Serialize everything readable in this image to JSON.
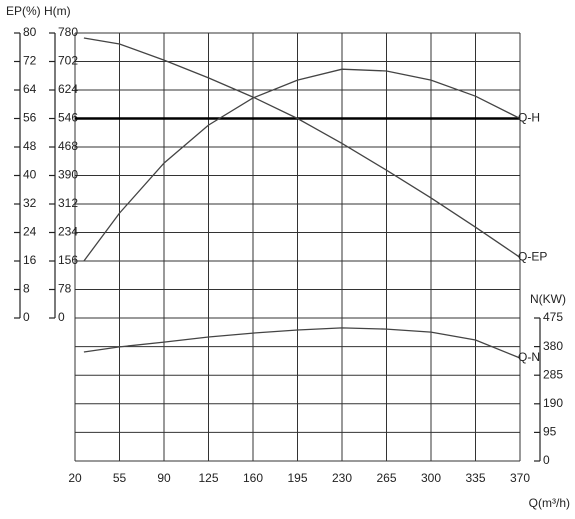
{
  "chart_data": {
    "type": "line",
    "x_label": "Q(m³/h)",
    "y_label": "EP(%)",
    "y2_label": "H(m)",
    "y3_label": "N(KW)",
    "xlim": [
      20,
      370
    ],
    "xticks": [
      20,
      55,
      90,
      125,
      160,
      195,
      230,
      265,
      300,
      335,
      370
    ],
    "ylim": [
      0,
      80
    ],
    "yticks": [
      0,
      8,
      16,
      24,
      32,
      40,
      48,
      56,
      64,
      72,
      80
    ],
    "y2lim": [
      0,
      780
    ],
    "y2ticks": [
      0,
      78,
      156,
      234,
      312,
      390,
      468,
      546,
      624,
      702,
      780
    ],
    "y3lim": [
      0,
      475
    ],
    "y3ticks": [
      0,
      95,
      190,
      285,
      380,
      475
    ],
    "reference_y2": 546,
    "grid": true,
    "x": [
      27,
      55,
      90,
      125,
      160,
      195,
      230,
      265,
      300,
      335,
      370
    ],
    "series": [
      {
        "name": "Q-H",
        "color": "#444444",
        "axis": "y2",
        "values": [
          156,
          287,
          424,
          528,
          602,
          651,
          681,
          676,
          651,
          607,
          546
        ]
      },
      {
        "name": "Q-EP",
        "color": "#444444",
        "axis": "y",
        "values": [
          78.6,
          76.9,
          72.4,
          67.4,
          62,
          56,
          49,
          41.5,
          33.7,
          25.5,
          17
        ]
      },
      {
        "name": "Q-N",
        "color": "#444444",
        "axis": "y3",
        "values": [
          362,
          379,
          395,
          412,
          425,
          435,
          442,
          438,
          428,
          402,
          342
        ]
      }
    ]
  }
}
